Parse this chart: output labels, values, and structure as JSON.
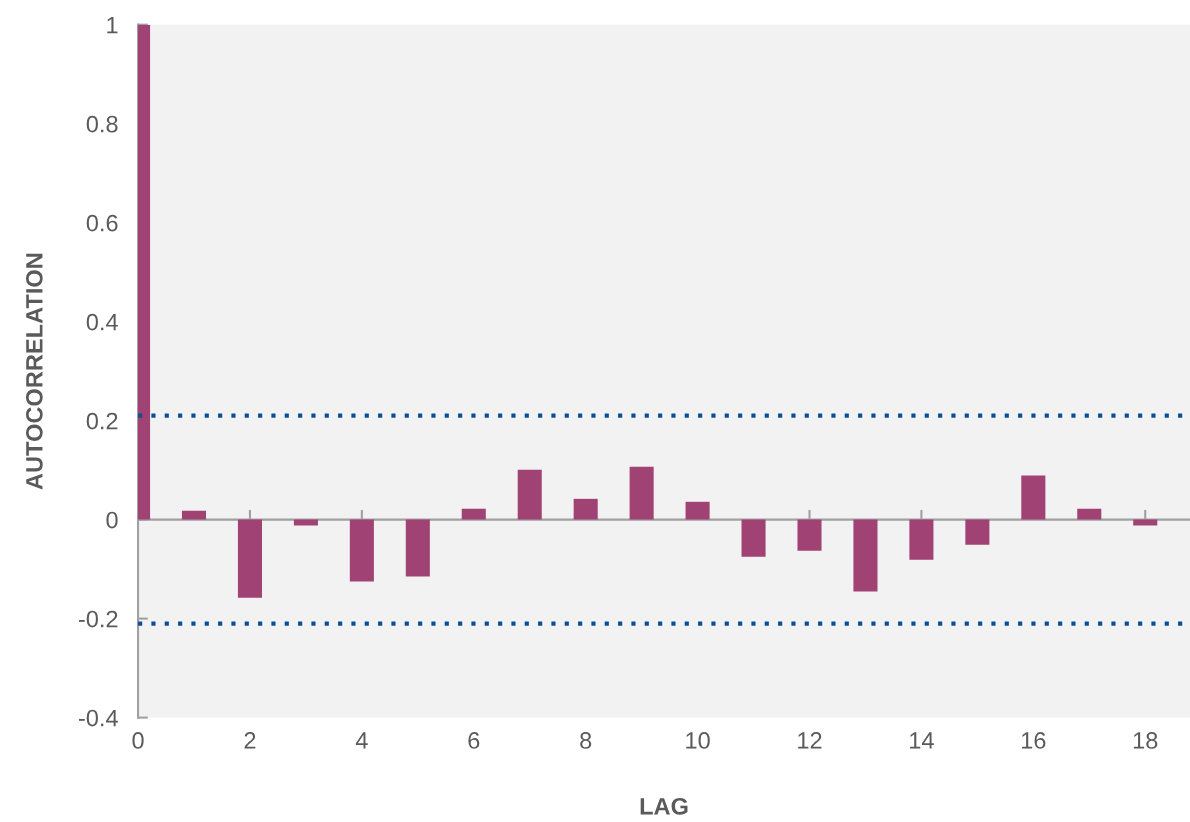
{
  "chart_data": {
    "type": "bar",
    "xlabel": "LAG",
    "ylabel": "AUTOCORRELATION",
    "x": [
      0,
      1,
      2,
      3,
      4,
      5,
      6,
      7,
      8,
      9,
      10,
      11,
      12,
      13,
      14,
      15,
      16,
      17,
      18
    ],
    "values": [
      1.0,
      0.018,
      -0.158,
      -0.012,
      -0.125,
      -0.115,
      0.022,
      0.101,
      0.042,
      0.107,
      0.036,
      -0.075,
      -0.063,
      -0.145,
      -0.081,
      -0.051,
      0.089,
      0.022,
      -0.012
    ],
    "color": "#a04273",
    "xlim": [
      0,
      18.8
    ],
    "xticks": [
      0,
      2,
      4,
      6,
      8,
      10,
      12,
      14,
      16,
      18
    ],
    "ylim": [
      -0.4,
      1
    ],
    "yticks": [
      {
        "value": -0.4,
        "label": "-0.4"
      },
      {
        "value": -0.2,
        "label": "-0.2"
      },
      0,
      0.2,
      0.4,
      0.6,
      0.8,
      1
    ],
    "ref_lines": [
      {
        "axis": "y",
        "value": 0.21,
        "label": null,
        "color": "#0b4f96",
        "line_style": "dotted"
      },
      {
        "axis": "y",
        "value": -0.21,
        "label": null,
        "color": "#0b4f96",
        "line_style": "dotted"
      }
    ],
    "legend": false
  }
}
